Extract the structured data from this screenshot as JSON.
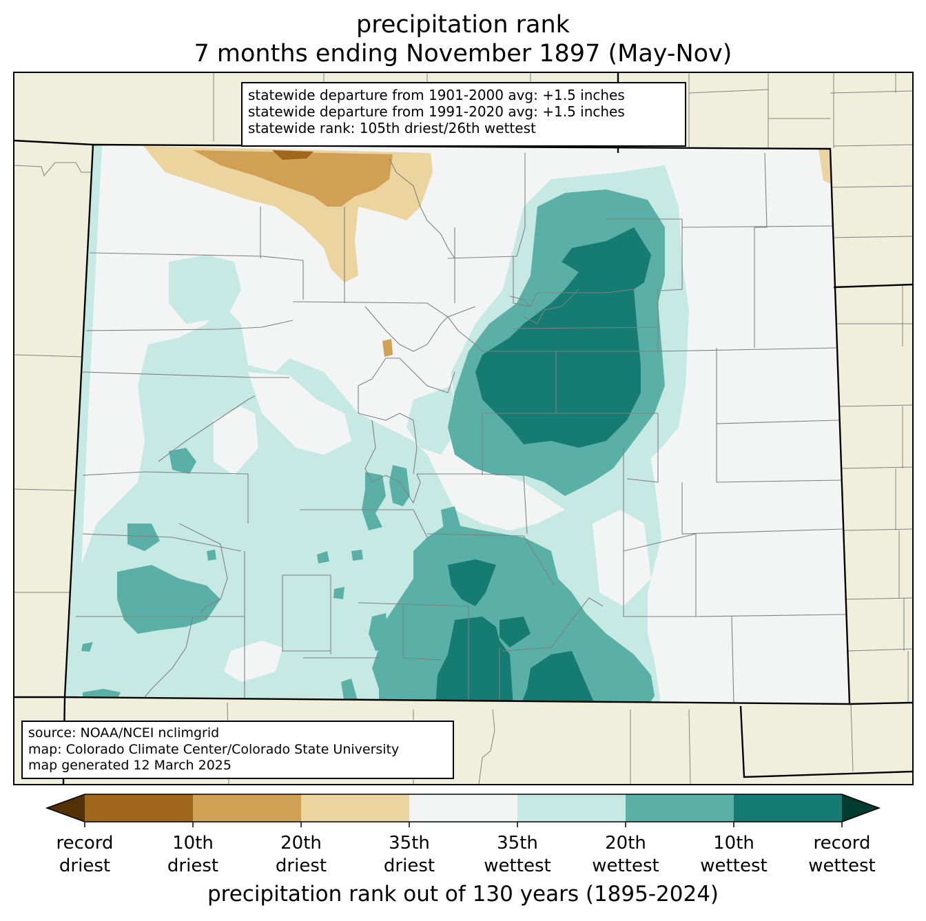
{
  "title": {
    "line1": "precipitation rank",
    "line2": "7 months ending November 1897 (May-Nov)"
  },
  "stats": {
    "line1": "statewide departure from 1901-2000 avg: +1.5 inches",
    "line2": "statewide departure from 1991-2020 avg: +1.5 inches",
    "line3": "statewide rank: 105th driest/26th wettest"
  },
  "source": {
    "line1": "source: NOAA/NCEI nclimgrid",
    "line2": "map: Colorado Climate Center/Colorado State University",
    "line3": "map generated 12 March 2025"
  },
  "colorbar": {
    "title": "precipitation rank out of 130 years (1895-2024)",
    "labels": [
      {
        "top": "record",
        "bottom": "driest"
      },
      {
        "top": "10th",
        "bottom": "driest"
      },
      {
        "top": "20th",
        "bottom": "driest"
      },
      {
        "top": "35th",
        "bottom": "driest"
      },
      {
        "top": "35th",
        "bottom": "wettest"
      },
      {
        "top": "20th",
        "bottom": "wettest"
      },
      {
        "top": "10th",
        "bottom": "wettest"
      },
      {
        "top": "record",
        "bottom": "wettest"
      }
    ],
    "colors": {
      "below_record_driest": "#543005",
      "record_to_10th_driest": "#a0661c",
      "10th_to_20th_driest": "#d0a055",
      "20th_to_35th_driest": "#ebd49e",
      "near_normal": "#f3f5f4",
      "35th_to_20th_wettest": "#c6e9e3",
      "20th_to_10th_wettest": "#5ab0a6",
      "10th_to_record_wettest": "#167b72",
      "above_record_wettest": "#003c30"
    }
  },
  "map_colors": {
    "background_land": "#efefdc",
    "county_lines": "#808080",
    "state_lines": "#000000"
  }
}
